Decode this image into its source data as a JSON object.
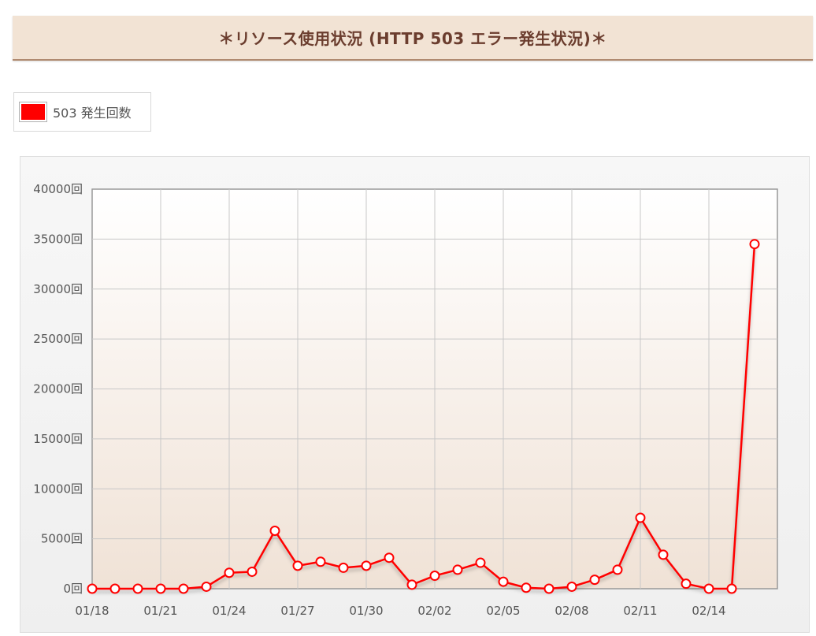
{
  "title": "＊リソース使用状況 (HTTP 503 エラー発生状況)＊",
  "legend": {
    "label": "503 発生回数",
    "color": "#ff0000"
  },
  "chart_data": {
    "type": "line",
    "title": "",
    "xlabel": "",
    "ylabel": "",
    "x": [
      "01/18",
      "01/19",
      "01/20",
      "01/21",
      "01/22",
      "01/23",
      "01/24",
      "01/25",
      "01/26",
      "01/27",
      "01/28",
      "01/29",
      "01/30",
      "01/31",
      "02/01",
      "02/02",
      "02/03",
      "02/04",
      "02/05",
      "02/06",
      "02/07",
      "02/08",
      "02/09",
      "02/10",
      "02/11",
      "02/12",
      "02/13",
      "02/14",
      "02/15",
      "02/16"
    ],
    "x_tick_labels": [
      "01/18",
      "01/21",
      "01/24",
      "01/27",
      "01/30",
      "02/02",
      "02/05",
      "02/08",
      "02/11",
      "02/14"
    ],
    "y_tick_labels": [
      "0回",
      "5000回",
      "10000回",
      "15000回",
      "20000回",
      "25000回",
      "30000回",
      "35000回",
      "40000回"
    ],
    "ylim": [
      0,
      40000
    ],
    "grid": true,
    "legend_position": "top-left",
    "series": [
      {
        "name": "503 発生回数",
        "color": "#ff0000",
        "values": [
          0,
          0,
          0,
          0,
          0,
          200,
          1600,
          1700,
          5800,
          2300,
          2700,
          2100,
          2300,
          3100,
          400,
          1300,
          1900,
          2600,
          700,
          100,
          0,
          200,
          900,
          1900,
          7100,
          3400,
          500,
          0,
          0,
          34500
        ]
      }
    ]
  }
}
